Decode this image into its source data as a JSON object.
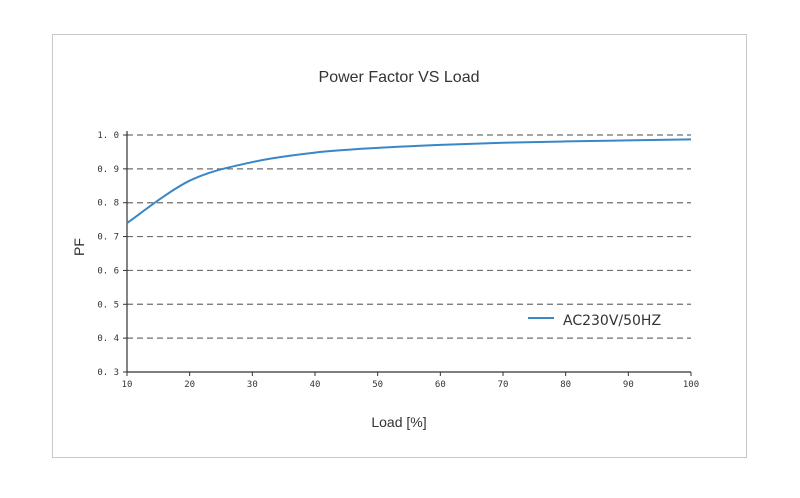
{
  "chart_data": {
    "type": "line",
    "title": "Power Factor VS Load",
    "xlabel": "Load [%]",
    "ylabel": "PF",
    "xlim": [
      10,
      100
    ],
    "ylim": [
      0.3,
      1.0
    ],
    "x_ticks": [
      "10",
      "20",
      "30",
      "40",
      "50",
      "60",
      "70",
      "80",
      "90",
      "100"
    ],
    "y_ticks": [
      "0.3",
      "0.4",
      "0.5",
      "0.6",
      "0.7",
      "0.8",
      "0.9",
      "1.0"
    ],
    "grid": "horizontal dashed",
    "legend_position": "bottom-right",
    "series": [
      {
        "name": "AC230V/50HZ",
        "color": "#3a86c8",
        "x": [
          10,
          20,
          30,
          40,
          50,
          60,
          70,
          80,
          90,
          100
        ],
        "y": [
          0.74,
          0.865,
          0.92,
          0.948,
          0.962,
          0.971,
          0.977,
          0.981,
          0.984,
          0.987
        ]
      }
    ]
  }
}
